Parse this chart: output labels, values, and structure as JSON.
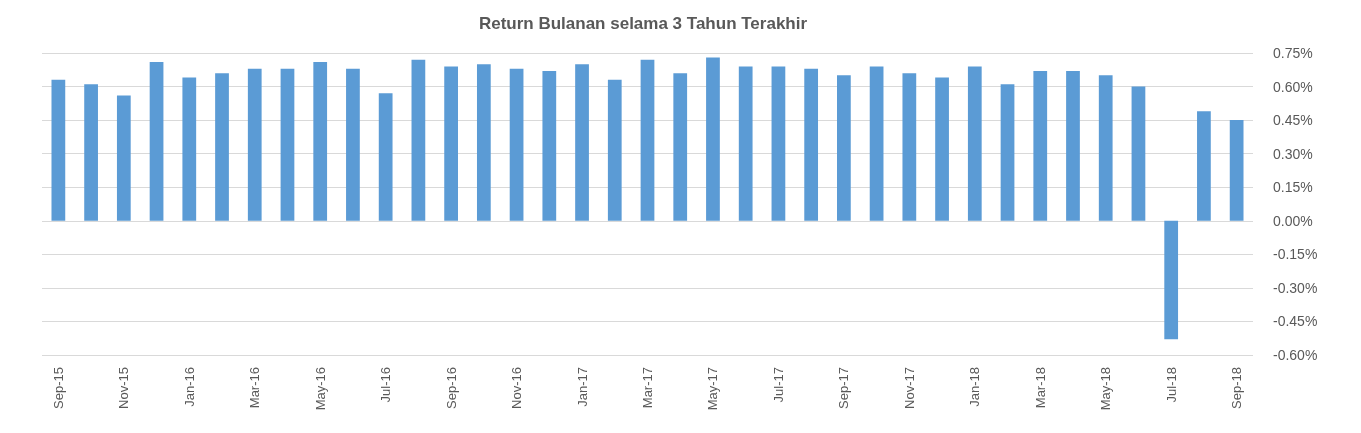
{
  "chart_data": {
    "type": "bar",
    "title": "Return Bulanan selama 3 Tahun Terakhir",
    "categories": [
      "Sep-15",
      null,
      "Nov-15",
      null,
      "Jan-16",
      null,
      "Mar-16",
      null,
      "May-16",
      null,
      "Jul-16",
      null,
      "Sep-16",
      null,
      "Nov-16",
      null,
      "Jan-17",
      null,
      "Mar-17",
      null,
      "May-17",
      null,
      "Jul-17",
      null,
      "Sep-17",
      null,
      "Nov-17",
      null,
      "Jan-18",
      null,
      "Mar-18",
      null,
      "May-18",
      null,
      "Jul-18",
      null,
      "Sep-18"
    ],
    "values": [
      0.63,
      0.61,
      0.56,
      0.71,
      0.64,
      0.66,
      0.68,
      0.68,
      0.71,
      0.68,
      0.57,
      0.72,
      0.69,
      0.7,
      0.68,
      0.67,
      0.7,
      0.63,
      0.72,
      0.66,
      0.73,
      0.69,
      0.69,
      0.68,
      0.65,
      0.69,
      0.66,
      0.64,
      0.69,
      0.61,
      0.67,
      0.67,
      0.65,
      0.6,
      -0.53,
      0.49,
      0.45
    ],
    "color": "#5b9bd5",
    "ylim": [
      -0.6,
      0.75
    ],
    "yticks": [
      {
        "value": -0.6,
        "label": "-0.60%"
      },
      {
        "value": -0.45,
        "label": "-0.45%"
      },
      {
        "value": -0.3,
        "label": "-0.30%"
      },
      {
        "value": -0.15,
        "label": "-0.15%"
      },
      {
        "value": 0,
        "label": "0.00%"
      },
      {
        "value": 0.15,
        "label": "0.15%"
      },
      {
        "value": 0.3,
        "label": "0.30%"
      },
      {
        "value": 0.45,
        "label": "0.45%"
      },
      {
        "value": 0.6,
        "label": "0.60%"
      },
      {
        "value": 0.75,
        "label": "0.75%"
      }
    ],
    "grid": true
  }
}
